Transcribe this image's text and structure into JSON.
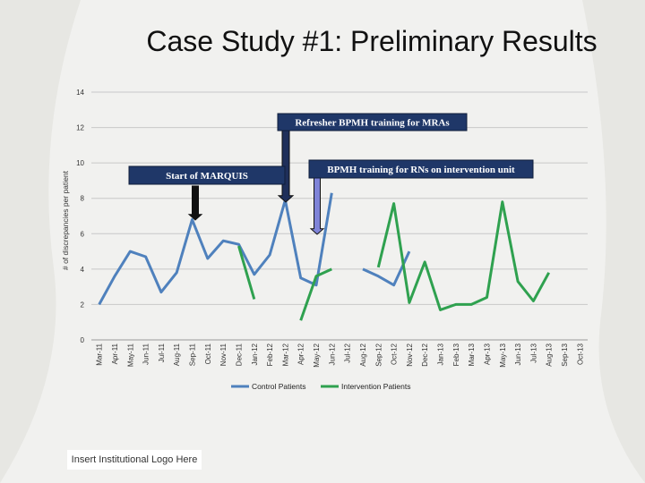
{
  "slide": {
    "title": "Case Study #1: Preliminary Results",
    "logo_text": "Insert Institutional Logo Here"
  },
  "annotations": {
    "refresher": "Refresher BPMH training for MRAs",
    "marquis": "Start of MARQUIS",
    "rn_training": "BPMH training for RNs on intervention unit"
  },
  "colors": {
    "control": "#4f81bd",
    "intervention": "#2fa14f",
    "arrow_dark": "#1f2f5a",
    "arrow_light": "#7f84d8",
    "box": "#1f3768"
  },
  "chart_data": {
    "type": "line",
    "title": "",
    "ylabel": "# of discrepancies per patient",
    "xlabel": "",
    "ylim": [
      0,
      14
    ],
    "yticks": [
      0,
      2,
      4,
      6,
      8,
      10,
      12,
      14
    ],
    "grid": true,
    "legend": "bottom",
    "categories": [
      "Mar-11",
      "Apr-11",
      "May-11",
      "Jun-11",
      "Jul-11",
      "Aug-11",
      "Sep-11",
      "Oct-11",
      "Nov-11",
      "Dec-11",
      "Jan-12",
      "Feb-12",
      "Mar-12",
      "Apr-12",
      "May-12",
      "Jun-12",
      "Jul-12",
      "Aug-12",
      "Sep-12",
      "Oct-12",
      "Nov-12",
      "Dec-12",
      "Jan-13",
      "Feb-13",
      "Mar-13",
      "Apr-13",
      "May-13",
      "Jun-13",
      "Jul-13",
      "Aug-13",
      "Sep-13",
      "Oct-13"
    ],
    "series": [
      {
        "name": "Control Patients",
        "values": [
          2.0,
          3.6,
          5.0,
          4.7,
          2.7,
          3.8,
          6.8,
          4.6,
          5.6,
          5.4,
          3.7,
          4.8,
          7.9,
          3.5,
          3.1,
          8.3,
          null,
          4.0,
          3.6,
          3.1,
          5.0,
          null,
          null,
          null,
          null,
          null,
          null,
          null,
          null,
          null,
          null,
          null
        ]
      },
      {
        "name": "Intervention Patients",
        "values": [
          null,
          null,
          null,
          null,
          null,
          null,
          null,
          null,
          null,
          5.3,
          2.3,
          null,
          null,
          1.1,
          3.6,
          4.0,
          null,
          null,
          4.1,
          7.7,
          2.1,
          4.4,
          1.7,
          2.0,
          2.0,
          2.4,
          7.8,
          3.3,
          2.2,
          3.8,
          null,
          null
        ]
      }
    ]
  }
}
